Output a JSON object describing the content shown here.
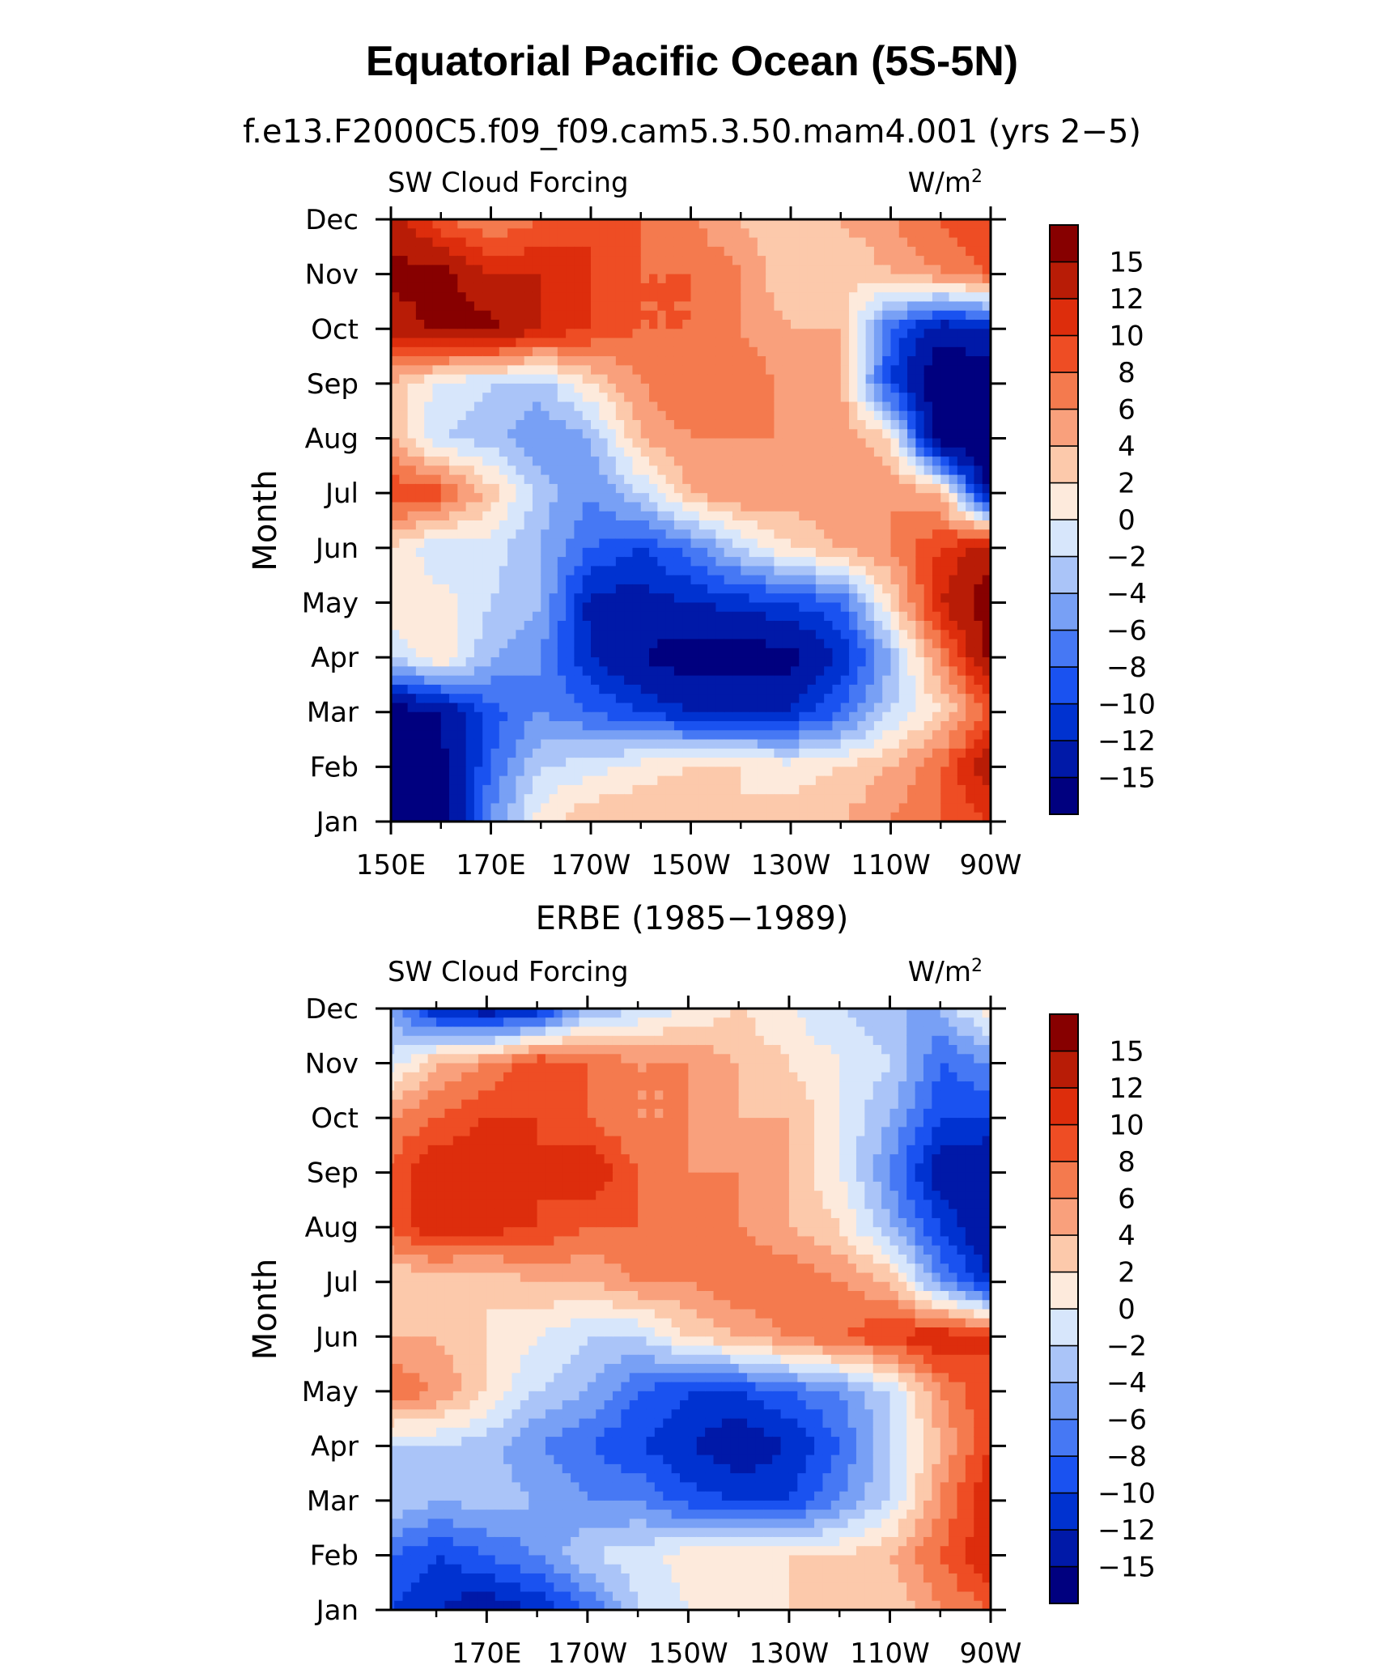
{
  "main_title": "Equatorial Pacific Ocean (5S-5N)",
  "months": [
    "Jan",
    "Feb",
    "Mar",
    "Apr",
    "May",
    "Jun",
    "Jul",
    "Aug",
    "Sep",
    "Oct",
    "Nov",
    "Dec"
  ],
  "colorbar": {
    "levels": [
      -15,
      -12,
      -10,
      -8,
      -6,
      -4,
      -2,
      0,
      2,
      4,
      6,
      8,
      10,
      12,
      15
    ],
    "colors": [
      "#00007f",
      "#0019a8",
      "#0032d0",
      "#1a52f0",
      "#4678f4",
      "#78a0f5",
      "#aac4f8",
      "#d7e6fb",
      "#fdeadc",
      "#fcc9ab",
      "#f9a07c",
      "#f47a4e",
      "#ee4d24",
      "#dd2d0c",
      "#b81c06",
      "#870000"
    ]
  },
  "chart_data": [
    {
      "type": "heatmap",
      "subtitle": "f.e13.F2000C5.f09_f09.cam5.3.50.mam4.001 (yrs 2−5)",
      "left_label": "SW Cloud Forcing",
      "right_label": "W/m",
      "right_label_sup": "2",
      "ylabel": "Month",
      "x_tick_labels": [
        "150E",
        "170E",
        "170W",
        "150W",
        "130W",
        "110W",
        "90W"
      ],
      "x_ticks_deg_east": [
        150,
        170,
        190,
        210,
        230,
        250,
        270
      ],
      "xlim": [
        150,
        270
      ],
      "x": [
        150,
        160,
        170,
        180,
        190,
        200,
        210,
        220,
        230,
        240,
        250,
        260,
        270
      ],
      "y": [
        "Jan",
        "Feb",
        "Mar",
        "Apr",
        "May",
        "Jun",
        "Jul",
        "Aug",
        "Sep",
        "Oct",
        "Nov",
        "Dec"
      ],
      "z": [
        [
          -18,
          -17,
          -6,
          1,
          4,
          4,
          4,
          2,
          3,
          4,
          6,
          8,
          10
        ],
        [
          -17,
          -16,
          -8,
          -2,
          -1,
          1,
          2,
          2,
          1,
          2,
          4,
          8,
          14
        ],
        [
          -17,
          -15,
          -9,
          -6,
          -8,
          -10,
          -12,
          -12,
          -12,
          -8,
          -2,
          2,
          8
        ],
        [
          -2,
          2,
          -4,
          -6,
          -12,
          -15,
          -17,
          -17,
          -16,
          -12,
          -4,
          6,
          16
        ],
        [
          2,
          1,
          -2,
          -4,
          -13,
          -13,
          -12,
          -11,
          -10,
          -8,
          2,
          12,
          17
        ],
        [
          2,
          -2,
          -1,
          -4,
          -8,
          -10,
          -7,
          -2,
          2,
          4,
          6,
          10,
          14
        ],
        [
          10,
          9,
          3,
          -3,
          -6,
          -2,
          4,
          6,
          5,
          6,
          6,
          4,
          -16
        ],
        [
          4,
          -2,
          -3,
          -6,
          -4,
          4,
          6,
          6,
          6,
          6,
          2,
          -18,
          -18
        ],
        [
          4,
          -1,
          -2,
          -3,
          2,
          6,
          8,
          8,
          5,
          4,
          -10,
          -18,
          -18
        ],
        [
          13,
          16,
          16,
          12,
          10,
          8,
          8,
          6,
          4,
          4,
          -8,
          -14,
          -12
        ],
        [
          16,
          16,
          12,
          12,
          10,
          8,
          8,
          6,
          2,
          2,
          4,
          6,
          8
        ],
        [
          14,
          8,
          6,
          8,
          10,
          8,
          6,
          4,
          2,
          4,
          6,
          8,
          10
        ]
      ]
    },
    {
      "type": "heatmap",
      "subtitle": "ERBE (1985−1989)",
      "left_label": "SW Cloud Forcing",
      "right_label": "W/m",
      "right_label_sup": "2",
      "ylabel": "Month",
      "x_tick_labels": [
        "170E",
        "170W",
        "150W",
        "130W",
        "110W",
        "90W"
      ],
      "x_ticks_deg_east": [
        170,
        190,
        210,
        230,
        250,
        270
      ],
      "xlim": [
        151,
        270
      ],
      "x": [
        150,
        160,
        170,
        180,
        190,
        200,
        210,
        220,
        230,
        240,
        250,
        260,
        270
      ],
      "y": [
        "Jan",
        "Feb",
        "Mar",
        "Apr",
        "May",
        "Jun",
        "Jul",
        "Aug",
        "Sep",
        "Oct",
        "Nov",
        "Dec"
      ],
      "z": [
        [
          -10,
          -12,
          -14,
          -12,
          -8,
          -2,
          0,
          1,
          2,
          4,
          2,
          6,
          8
        ],
        [
          -8,
          -10,
          -8,
          -6,
          -2,
          -1,
          1,
          2,
          2,
          2,
          4,
          8,
          12
        ],
        [
          -2,
          -4,
          -3,
          -4,
          -6,
          -6,
          -9,
          -10,
          -10,
          -6,
          -2,
          6,
          12
        ],
        [
          -2,
          -2,
          -3,
          -6,
          -8,
          -10,
          -12,
          -14,
          -12,
          -8,
          -2,
          4,
          10
        ],
        [
          8,
          6,
          2,
          -2,
          -4,
          -8,
          -10,
          -10,
          -8,
          -6,
          -2,
          6,
          10
        ],
        [
          4,
          4,
          2,
          0,
          -2,
          -2,
          2,
          4,
          6,
          8,
          10,
          12,
          10
        ],
        [
          2,
          2,
          2,
          4,
          4,
          6,
          6,
          8,
          8,
          6,
          4,
          -6,
          -12
        ],
        [
          8,
          12,
          11,
          10,
          8,
          8,
          8,
          6,
          4,
          2,
          -4,
          -10,
          -15
        ],
        [
          8,
          12,
          12,
          10,
          12,
          8,
          6,
          6,
          4,
          0,
          -6,
          -14,
          -15
        ],
        [
          6,
          8,
          10,
          10,
          8,
          6,
          6,
          4,
          4,
          0,
          -4,
          -10,
          -10
        ],
        [
          -2,
          4,
          6,
          10,
          8,
          6,
          6,
          4,
          2,
          0,
          -2,
          -8,
          -6
        ],
        [
          -4,
          -12,
          -14,
          -12,
          -4,
          -2,
          0,
          2,
          0,
          -2,
          -4,
          -4,
          2
        ]
      ]
    }
  ]
}
